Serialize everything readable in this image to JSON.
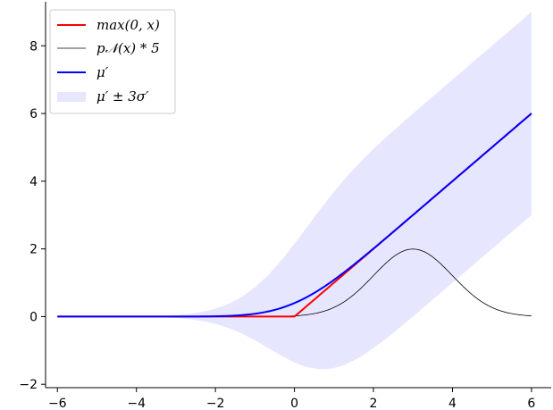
{
  "chart_data": {
    "type": "line",
    "title": "",
    "xlabel": "",
    "ylabel": "",
    "xlim": [
      -6.3,
      6.5
    ],
    "ylim": [
      -2.1,
      9.3
    ],
    "xticks": [
      -6,
      -4,
      -2,
      0,
      2,
      4,
      6
    ],
    "yticks": [
      -2,
      0,
      2,
      4,
      6,
      8
    ],
    "xtick_labels": [
      "−6",
      "−4",
      "−2",
      "0",
      "2",
      "4",
      "6"
    ],
    "ytick_labels": [
      "−2",
      "0",
      "2",
      "4",
      "6",
      "8"
    ],
    "grid": false,
    "legend_position": "top-left",
    "x_range": [
      -6,
      6
    ],
    "gaussian": {
      "mean": 3,
      "sigma": 1,
      "scale": 5
    },
    "series": [
      {
        "name": "max(0, x)",
        "color": "#ff0000",
        "kind": "relu"
      },
      {
        "name": "p𝒩(x) * 5",
        "color": "#000000",
        "kind": "gaussian_pdf_scaled"
      },
      {
        "name": "μ′",
        "color": "#0000ff",
        "kind": "expected_relu"
      },
      {
        "name": "μ′ ± 3σ′",
        "color": "#e6e6ff",
        "kind": "band"
      }
    ]
  }
}
